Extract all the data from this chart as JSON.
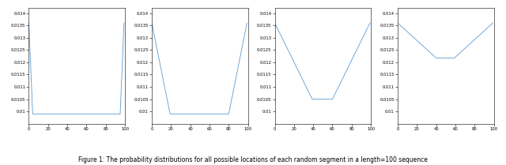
{
  "caption": "Figure 1: The probability distributions for all possible locations of each random segment in a length=100 sequence",
  "N": 100,
  "segment_lengths": [
    5,
    20,
    40,
    60
  ],
  "ylim": [
    0.0095,
    0.0142
  ],
  "xlim": [
    0,
    100
  ],
  "yticks": [
    0.0095,
    0.01,
    0.0105,
    0.011,
    0.0115,
    0.012,
    0.0125,
    0.013,
    0.0135,
    0.014
  ],
  "ytick_labels": [
    "",
    "0.01",
    "0.0105",
    "0.011",
    "0.0115",
    "0.012",
    "0.0125",
    "0.013",
    "0.0135",
    "0.014"
  ],
  "xticks": [
    0,
    20,
    40,
    60,
    80,
    100
  ],
  "xtick_labels": [
    "0",
    "20",
    "40",
    "60",
    "80",
    "100"
  ],
  "line_color": "#5b9bd5",
  "bg_color": "#ffffff",
  "tick_fontsize": 3.8,
  "caption_fontsize": 5.5,
  "linewidth": 0.6
}
